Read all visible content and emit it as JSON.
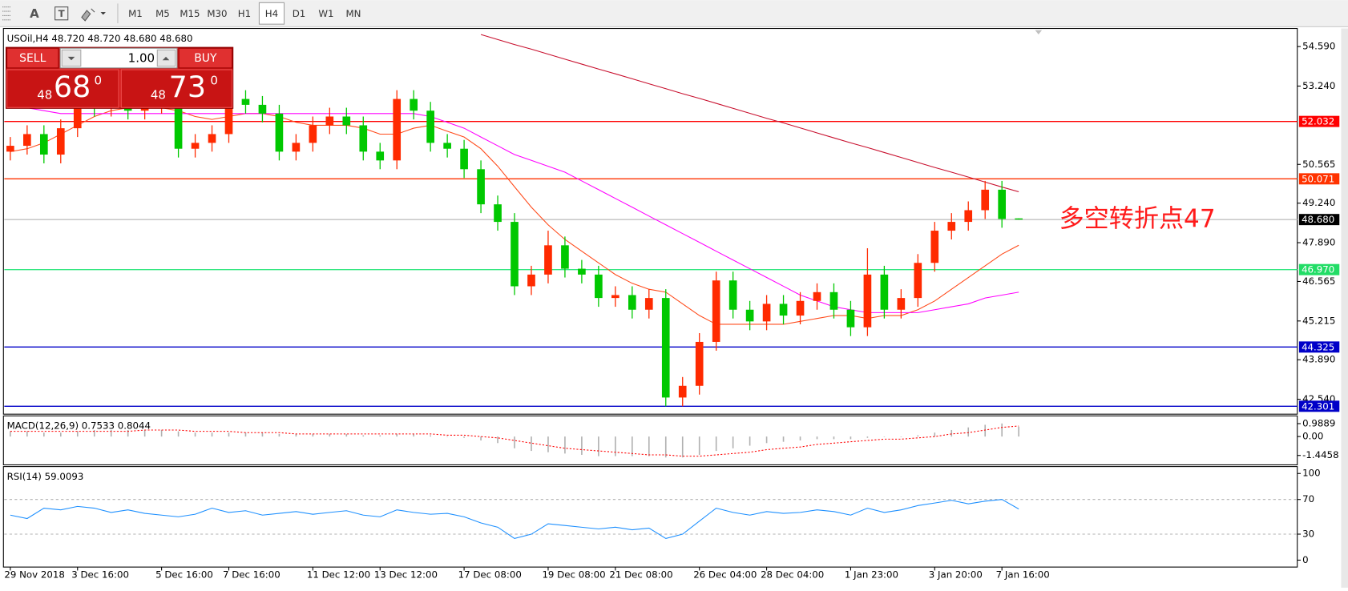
{
  "toolbar": {
    "text_tool": "A",
    "timeframes": [
      "M1",
      "M5",
      "M15",
      "M30",
      "H1",
      "H4",
      "D1",
      "W1",
      "MN"
    ],
    "active_timeframe": "H4"
  },
  "trade_panel": {
    "sell": "SELL",
    "buy": "BUY",
    "lots": "1.00",
    "bid": {
      "big": "48",
      "main": "68",
      "sup": "0"
    },
    "ask": {
      "big": "48",
      "main": "73",
      "sup": "0"
    }
  },
  "chart_data": [
    {
      "type": "candlestick",
      "title": "USOil,H4  48.720 48.720 48.680 48.680",
      "annotation": "多空转折点47",
      "categories": [
        "29 Nov 2018",
        null,
        null,
        null,
        "3 Dec 16:00",
        null,
        null,
        null,
        null,
        "5 Dec 16:00",
        null,
        null,
        null,
        "7 Dec 16:00",
        null,
        null,
        null,
        null,
        "11 Dec 12:00",
        null,
        null,
        null,
        "13 Dec 12:00",
        null,
        null,
        null,
        null,
        "17 Dec 08:00",
        null,
        null,
        null,
        null,
        "19 Dec 08:00",
        null,
        null,
        null,
        "21 Dec 08:00",
        null,
        null,
        null,
        null,
        "26 Dec 04:00",
        null,
        null,
        null,
        "28 Dec 04:00",
        null,
        null,
        null,
        null,
        "1 Jan 23:00",
        null,
        null,
        null,
        null,
        "3 Jan 20:00",
        null,
        null,
        null,
        "7 Jan 16:00",
        null
      ],
      "open": [
        51.0,
        51.2,
        51.6,
        50.9,
        51.8,
        52.6,
        52.5,
        52.7,
        52.4,
        52.6,
        52.9,
        51.1,
        51.3,
        51.6,
        52.8,
        52.6,
        52.3,
        51.0,
        51.3,
        51.9,
        52.2,
        51.9,
        51.0,
        50.7,
        52.8,
        52.4,
        51.3,
        51.1,
        50.4,
        49.2,
        48.6,
        46.4,
        46.8,
        47.8,
        47.0,
        46.8,
        46.0,
        46.1,
        45.6,
        46.0,
        42.6,
        43.0,
        44.5,
        46.6,
        45.6,
        45.2,
        45.8,
        45.4,
        45.9,
        46.2,
        45.6,
        45.0,
        46.8,
        45.6,
        46.0,
        47.2,
        48.3,
        48.6,
        49.0,
        49.7,
        48.72
      ],
      "high": [
        51.5,
        51.9,
        51.9,
        52.1,
        52.9,
        52.9,
        53.0,
        53.0,
        52.9,
        53.2,
        53.2,
        51.6,
        51.9,
        53.1,
        53.1,
        52.9,
        52.6,
        51.6,
        52.2,
        52.5,
        52.5,
        52.2,
        51.3,
        53.1,
        53.1,
        52.7,
        51.6,
        51.4,
        50.7,
        49.5,
        48.9,
        47.1,
        48.3,
        48.1,
        47.3,
        47.1,
        46.4,
        46.4,
        46.3,
        46.3,
        43.3,
        44.8,
        46.9,
        46.9,
        45.9,
        46.1,
        46.1,
        46.2,
        46.5,
        46.5,
        45.9,
        47.7,
        47.1,
        46.3,
        47.5,
        48.6,
        48.9,
        49.3,
        50.0,
        50.0,
        48.72
      ],
      "low": [
        50.7,
        50.9,
        50.6,
        50.6,
        51.5,
        52.2,
        52.2,
        52.1,
        52.1,
        52.3,
        50.8,
        50.8,
        51.0,
        51.3,
        52.3,
        52.0,
        50.7,
        50.7,
        51.0,
        51.6,
        51.6,
        50.7,
        50.4,
        50.4,
        52.1,
        51.0,
        50.8,
        50.1,
        48.9,
        48.3,
        46.1,
        46.1,
        46.5,
        46.7,
        46.5,
        45.7,
        45.7,
        45.3,
        45.3,
        42.3,
        42.3,
        42.7,
        44.2,
        45.3,
        44.9,
        44.9,
        45.1,
        45.1,
        45.6,
        45.3,
        44.7,
        44.7,
        45.3,
        45.3,
        45.7,
        46.9,
        48.0,
        48.3,
        48.7,
        48.4,
        48.68
      ],
      "close": [
        51.2,
        51.6,
        50.9,
        51.8,
        52.6,
        52.5,
        52.7,
        52.4,
        52.6,
        52.9,
        51.1,
        51.3,
        51.6,
        52.8,
        52.6,
        52.3,
        51.0,
        51.3,
        51.9,
        52.2,
        51.9,
        51.0,
        50.7,
        52.8,
        52.4,
        51.3,
        51.1,
        50.4,
        49.2,
        48.6,
        46.4,
        46.8,
        47.8,
        47.0,
        46.8,
        46.0,
        46.1,
        45.6,
        46.0,
        42.6,
        43.0,
        44.5,
        46.6,
        45.6,
        45.2,
        45.8,
        45.4,
        45.9,
        46.2,
        45.6,
        45.0,
        46.8,
        45.6,
        46.0,
        47.2,
        48.3,
        48.6,
        49.0,
        49.7,
        48.7,
        48.68
      ],
      "up_color": "#ff2a00",
      "down_color": "#00c800",
      "lines": [
        {
          "color": "#ff4a1a",
          "values": [
            51.0,
            51.1,
            51.3,
            51.6,
            51.9,
            52.2,
            52.4,
            52.5,
            52.5,
            52.5,
            52.4,
            52.2,
            52.1,
            52.2,
            52.3,
            52.3,
            52.2,
            52.0,
            51.9,
            51.9,
            51.9,
            51.8,
            51.6,
            51.6,
            51.8,
            51.9,
            51.7,
            51.5,
            51.1,
            50.5,
            49.8,
            49.1,
            48.5,
            48.0,
            47.6,
            47.2,
            46.8,
            46.5,
            46.3,
            46.2,
            45.8,
            45.4,
            45.1,
            45.1,
            45.1,
            45.1,
            45.1,
            45.2,
            45.3,
            45.4,
            45.4,
            45.3,
            45.4,
            45.4,
            45.6,
            45.9,
            46.3,
            46.7,
            47.1,
            47.5,
            47.8
          ]
        },
        {
          "color": "#ff00ff",
          "values": [
            52.5,
            52.5,
            52.4,
            52.3,
            52.3,
            52.3,
            52.3,
            52.3,
            52.3,
            52.3,
            52.3,
            52.3,
            52.3,
            52.3,
            52.3,
            52.3,
            52.3,
            52.3,
            52.3,
            52.3,
            52.3,
            52.3,
            52.3,
            52.3,
            52.3,
            52.2,
            52.0,
            51.8,
            51.5,
            51.2,
            50.9,
            50.7,
            50.5,
            50.3,
            50.0,
            49.7,
            49.4,
            49.1,
            48.8,
            48.5,
            48.2,
            47.9,
            47.6,
            47.3,
            47.0,
            46.7,
            46.4,
            46.1,
            45.9,
            45.7,
            45.6,
            45.5,
            45.5,
            45.5,
            45.5,
            45.6,
            45.7,
            45.8,
            46.0,
            46.1,
            46.2
          ]
        },
        {
          "color": "#c8102e",
          "values": [
            null,
            null,
            null,
            null,
            null,
            null,
            null,
            null,
            null,
            null,
            null,
            null,
            null,
            null,
            null,
            null,
            null,
            null,
            null,
            null,
            null,
            null,
            null,
            null,
            null,
            null,
            null,
            null,
            55.0,
            54.83,
            54.66,
            54.5,
            54.33,
            54.16,
            53.99,
            53.82,
            53.66,
            53.49,
            53.32,
            53.15,
            52.98,
            52.82,
            52.65,
            52.48,
            52.31,
            52.14,
            51.98,
            51.81,
            51.64,
            51.47,
            51.3,
            51.14,
            50.97,
            50.8,
            50.63,
            50.46,
            50.3,
            50.13,
            49.96,
            49.79,
            49.63
          ]
        }
      ],
      "levels": [
        {
          "value": 52.032,
          "label": "52.032",
          "color": "#ff0000",
          "label_color": "#ff0000"
        },
        {
          "value": 50.071,
          "label": "50.071",
          "color": "#ff3300",
          "label_color": "#ff3300"
        },
        {
          "value": 48.68,
          "label": "48.680",
          "color": "#c0c0c0",
          "label_color": "#000000"
        },
        {
          "value": 46.97,
          "label": "46.970",
          "color": "#33e67f",
          "label_color": "#22dd66"
        },
        {
          "value": 44.325,
          "label": "44.325",
          "color": "#0000c8",
          "label_color": "#0000c8"
        },
        {
          "value": 42.301,
          "label": "42.301",
          "color": "#0000c8",
          "label_color": "#0000c8"
        }
      ],
      "ylim": [
        42.09,
        55.15
      ],
      "yticks": [
        {
          "value": 54.59,
          "label": "54.590"
        },
        {
          "value": 53.24,
          "label": "53.240"
        },
        50.565,
        {
          "value": 49.24,
          "label": "49.240"
        },
        {
          "value": 47.89,
          "label": "47.890"
        },
        46.565,
        45.215,
        {
          "value": 43.89,
          "label": "43.890"
        },
        {
          "value": 42.54,
          "label": "42.540"
        }
      ]
    },
    {
      "type": "macd",
      "title": "MACD(12,26,9) 0.7533 0.8044",
      "values": [
        0.4,
        0.4,
        0.3,
        0.3,
        0.4,
        0.5,
        0.5,
        0.5,
        0.5,
        0.5,
        0.4,
        0.3,
        0.3,
        0.3,
        0.3,
        0.3,
        0.2,
        0.2,
        0.2,
        0.2,
        0.2,
        0.1,
        0.1,
        0.2,
        0.2,
        0.1,
        0.0,
        -0.1,
        -0.3,
        -0.5,
        -0.9,
        -1.1,
        -1.2,
        -1.3,
        -1.4,
        -1.5,
        -1.5,
        -1.5,
        -1.5,
        -1.6,
        -1.6,
        -1.4,
        -1.1,
        -0.9,
        -0.7,
        -0.5,
        -0.4,
        -0.3,
        -0.2,
        -0.2,
        -0.2,
        -0.1,
        0.0,
        0.0,
        0.1,
        0.3,
        0.5,
        0.7,
        0.9,
        1.0,
        0.7533
      ],
      "signal": [
        0.4,
        0.4,
        0.4,
        0.4,
        0.4,
        0.4,
        0.4,
        0.4,
        0.5,
        0.5,
        0.5,
        0.4,
        0.4,
        0.4,
        0.3,
        0.3,
        0.3,
        0.2,
        0.2,
        0.2,
        0.2,
        0.2,
        0.2,
        0.2,
        0.2,
        0.2,
        0.1,
        0.1,
        0.0,
        -0.1,
        -0.3,
        -0.5,
        -0.7,
        -0.9,
        -1.0,
        -1.1,
        -1.2,
        -1.3,
        -1.4,
        -1.4,
        -1.5,
        -1.5,
        -1.4,
        -1.3,
        -1.2,
        -1.0,
        -0.9,
        -0.8,
        -0.6,
        -0.5,
        -0.4,
        -0.3,
        -0.2,
        -0.2,
        -0.1,
        0.0,
        0.2,
        0.3,
        0.5,
        0.7,
        0.8044
      ],
      "color": "#b0b0b0",
      "signal_color": "#ff0000",
      "ylim": [
        -2.1,
        1.45
      ],
      "yticks": [
        0.9889,
        {
          "value": 0,
          "label": "0.00"
        },
        -1.4458
      ]
    },
    {
      "type": "line",
      "title": "RSI(14) 59.0093",
      "values": [
        52,
        48,
        60,
        58,
        62,
        60,
        55,
        58,
        54,
        52,
        50,
        53,
        60,
        55,
        57,
        52,
        54,
        56,
        53,
        55,
        57,
        52,
        50,
        58,
        55,
        53,
        54,
        50,
        43,
        38,
        25,
        30,
        42,
        40,
        38,
        36,
        38,
        35,
        37,
        25,
        30,
        45,
        60,
        55,
        52,
        56,
        54,
        55,
        58,
        56,
        52,
        60,
        55,
        58,
        63,
        66,
        69,
        65,
        68,
        70,
        59.0093
      ],
      "color": "#1e90ff",
      "levels": [
        70,
        30
      ],
      "ylim": [
        -8,
        106
      ],
      "yticks": [
        100,
        70,
        30,
        0
      ]
    }
  ]
}
